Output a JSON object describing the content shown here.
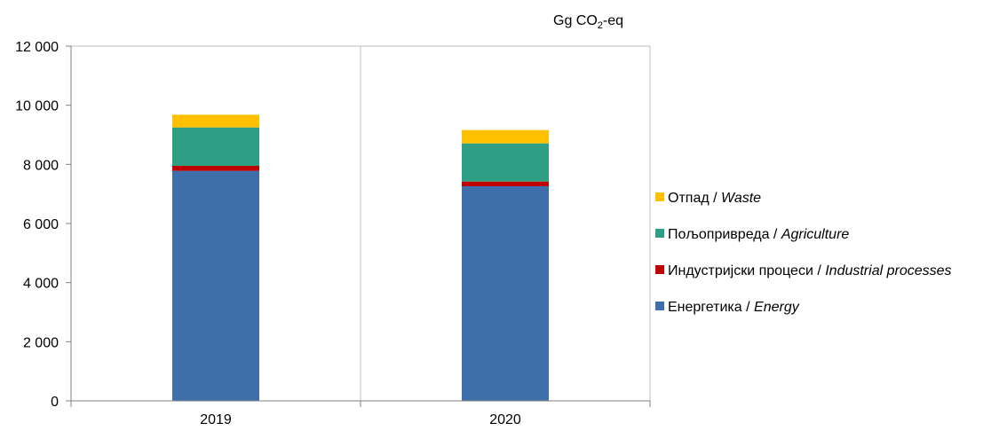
{
  "chart_data": {
    "type": "bar",
    "stacked": true,
    "unit_label": {
      "main": "Gg CO",
      "sub": "2",
      "suffix": "-eq"
    },
    "categories": [
      "2019",
      "2020"
    ],
    "ylim": [
      0,
      12000
    ],
    "yticks": [
      0,
      2000,
      4000,
      6000,
      8000,
      10000,
      12000
    ],
    "ytick_labels": [
      "0",
      "2 000",
      "4 000",
      "6 000",
      "8 000",
      "10 000",
      "12 000"
    ],
    "grid": true,
    "legend_position": "right",
    "series": [
      {
        "name": "Енергетика / Energy",
        "name_local": "Енергетика",
        "name_en": "Energy",
        "color": "#3F6FAB",
        "values": [
          7780,
          7260
        ]
      },
      {
        "name": "Индустријски процеси / Industrial processes",
        "name_local": "Индустријски процеси",
        "name_en": "Industrial processes",
        "color": "#C00000",
        "values": [
          170,
          160
        ]
      },
      {
        "name": "Пољопривреда / Agriculture",
        "name_local": "Пољопривреда",
        "name_en": "Agriculture",
        "color": "#2E9E84",
        "values": [
          1300,
          1290
        ]
      },
      {
        "name": "Отпад / Waste",
        "name_local": "Отпад",
        "name_en": "Waste",
        "color": "#FFC000",
        "values": [
          430,
          450
        ]
      }
    ]
  }
}
